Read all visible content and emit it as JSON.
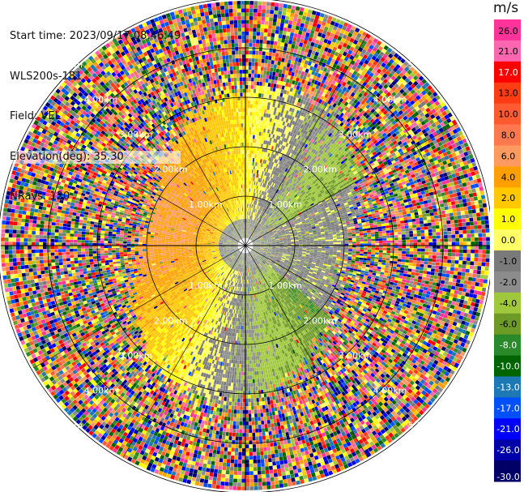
{
  "header": {
    "start_time": "Start time: 2023/09/17 08:46:49",
    "instrument": "WLS200s-181",
    "field": "Field: VEL",
    "elevation": "Elevation(deg): 35.30",
    "nrays": "NRays: 120"
  },
  "chart_data": {
    "type": "heatmap",
    "projection": "polar-ppi",
    "field": "VEL",
    "units": "m/s",
    "range_rings_labels": [
      "1.00km",
      "2.00km",
      "3.00km",
      "4.00km",
      "5.00km"
    ],
    "colorbar": {
      "unit_label": "m/s",
      "ticks": [
        "26.0",
        "21.0",
        "17.0",
        "13.0",
        "10.0",
        "8.0",
        "6.0",
        "4.0",
        "2.0",
        "1.0",
        "0.0",
        "-1.0",
        "-2.0",
        "-4.0",
        "-6.0",
        "-8.0",
        "-10.0",
        "-13.0",
        "-17.0",
        "-21.0",
        "-26.0",
        "-30.0"
      ],
      "bins": [
        {
          "min": 26,
          "max": 30,
          "color": "#ff3399"
        },
        {
          "min": 21,
          "max": 26,
          "color": "#ff66b0"
        },
        {
          "min": 17,
          "max": 21,
          "color": "#ff0000"
        },
        {
          "min": 13,
          "max": 17,
          "color": "#ff3c14"
        },
        {
          "min": 10,
          "max": 13,
          "color": "#ff5a32"
        },
        {
          "min": 8,
          "max": 10,
          "color": "#ff7850"
        },
        {
          "min": 6,
          "max": 8,
          "color": "#ff9a60"
        },
        {
          "min": 4,
          "max": 6,
          "color": "#ffa000"
        },
        {
          "min": 2,
          "max": 4,
          "color": "#ffc800"
        },
        {
          "min": 1,
          "max": 2,
          "color": "#ffff00"
        },
        {
          "min": 0,
          "max": 1,
          "color": "#ffff66"
        },
        {
          "min": -1,
          "max": 0,
          "color": "#7a7a7a"
        },
        {
          "min": -2,
          "max": -1,
          "color": "#8c8c8c"
        },
        {
          "min": -4,
          "max": -2,
          "color": "#a0c83c"
        },
        {
          "min": -6,
          "max": -4,
          "color": "#6e9a28"
        },
        {
          "min": -8,
          "max": -6,
          "color": "#2a8a2a"
        },
        {
          "min": -10,
          "max": -8,
          "color": "#006400"
        },
        {
          "min": -13,
          "max": -10,
          "color": "#1e78b4"
        },
        {
          "min": -17,
          "max": -13,
          "color": "#0050ff"
        },
        {
          "min": -21,
          "max": -17,
          "color": "#0000ff"
        },
        {
          "min": -26,
          "max": -21,
          "color": "#0000aa"
        },
        {
          "min": -30,
          "max": -26,
          "color": "#000066"
        }
      ]
    },
    "pattern": "inner region (<3 km): positive velocities (yellow/orange) to the north and west, negative velocities (green/gray) to the south and east; outer region (>3 km) dominated by noisy random colors"
  }
}
